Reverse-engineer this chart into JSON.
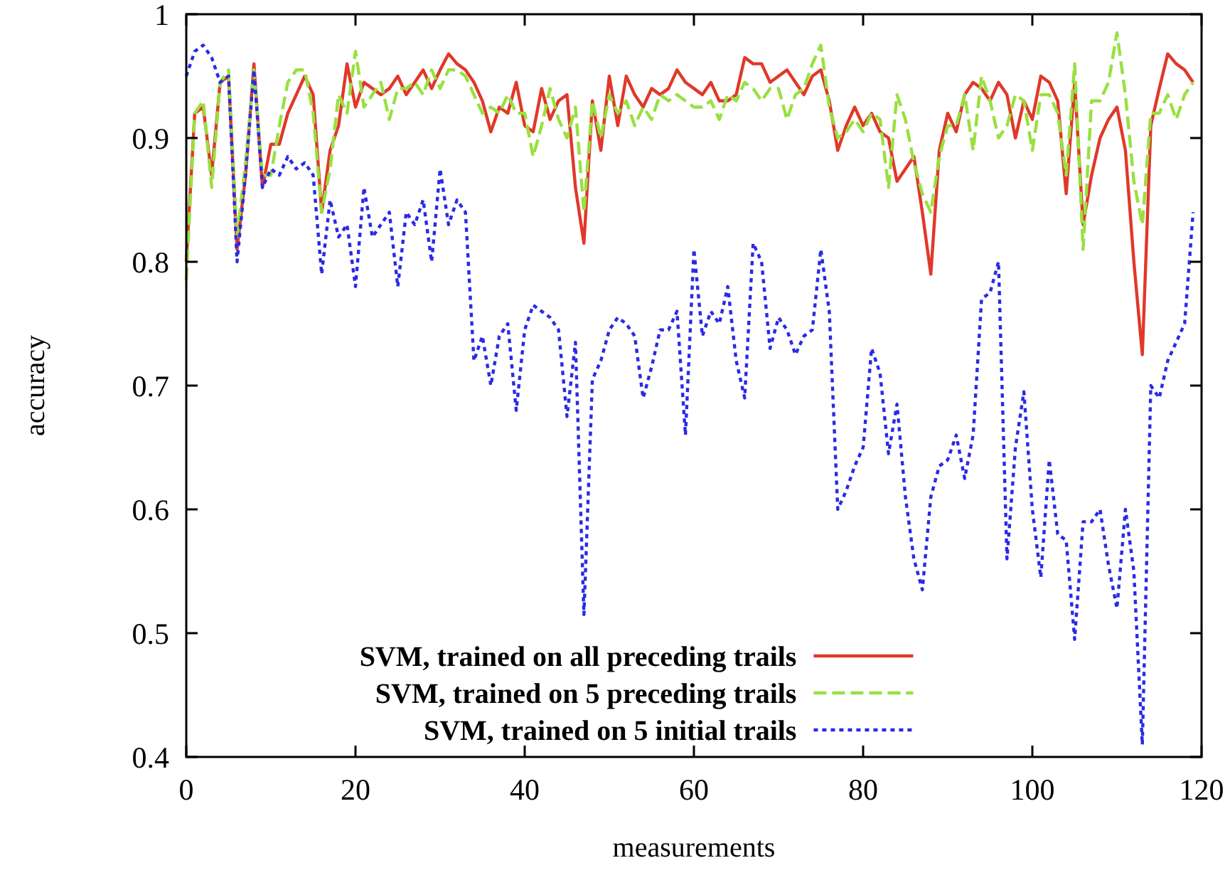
{
  "chart_data": {
    "type": "line",
    "xlabel": "measurements",
    "ylabel": "accuracy",
    "x": [
      0,
      1,
      2,
      3,
      4,
      5,
      6,
      7,
      8,
      9,
      10,
      11,
      12,
      13,
      14,
      15,
      16,
      17,
      18,
      19,
      20,
      21,
      22,
      23,
      24,
      25,
      26,
      27,
      28,
      29,
      30,
      31,
      32,
      33,
      34,
      35,
      36,
      37,
      38,
      39,
      40,
      41,
      42,
      43,
      44,
      45,
      46,
      47,
      48,
      49,
      50,
      51,
      52,
      53,
      54,
      55,
      56,
      57,
      58,
      59,
      60,
      61,
      62,
      63,
      64,
      65,
      66,
      67,
      68,
      69,
      70,
      71,
      72,
      73,
      74,
      75,
      76,
      77,
      78,
      79,
      80,
      81,
      82,
      83,
      84,
      85,
      86,
      87,
      88,
      89,
      90,
      91,
      92,
      93,
      94,
      95,
      96,
      97,
      98,
      99,
      100,
      101,
      102,
      103,
      104,
      105,
      106,
      107,
      108,
      109,
      110,
      111,
      112,
      113,
      114,
      115,
      116,
      117,
      118,
      119
    ],
    "series": [
      {
        "name": "SVM, trained on all preceding trails",
        "color": "#e0382a",
        "line_style": "solid",
        "values": [
          0.8,
          0.92,
          0.925,
          0.87,
          0.945,
          0.95,
          0.81,
          0.87,
          0.96,
          0.86,
          0.895,
          0.895,
          0.92,
          0.935,
          0.95,
          0.935,
          0.84,
          0.89,
          0.91,
          0.96,
          0.925,
          0.945,
          0.94,
          0.935,
          0.94,
          0.95,
          0.935,
          0.945,
          0.955,
          0.94,
          0.955,
          0.968,
          0.96,
          0.955,
          0.945,
          0.93,
          0.905,
          0.925,
          0.92,
          0.945,
          0.91,
          0.905,
          0.94,
          0.915,
          0.93,
          0.935,
          0.86,
          0.815,
          0.93,
          0.89,
          0.95,
          0.91,
          0.95,
          0.935,
          0.925,
          0.94,
          0.935,
          0.94,
          0.955,
          0.945,
          0.94,
          0.935,
          0.945,
          0.93,
          0.93,
          0.935,
          0.965,
          0.96,
          0.96,
          0.945,
          0.95,
          0.955,
          0.945,
          0.935,
          0.95,
          0.955,
          0.93,
          0.89,
          0.91,
          0.925,
          0.91,
          0.92,
          0.905,
          0.9,
          0.865,
          0.875,
          0.885,
          0.84,
          0.79,
          0.89,
          0.92,
          0.905,
          0.935,
          0.945,
          0.94,
          0.93,
          0.945,
          0.935,
          0.9,
          0.93,
          0.915,
          0.95,
          0.945,
          0.93,
          0.855,
          0.945,
          0.83,
          0.87,
          0.9,
          0.915,
          0.925,
          0.89,
          0.8,
          0.725,
          0.91,
          0.94,
          0.968,
          0.96,
          0.955,
          0.945
        ]
      },
      {
        "name": "SVM, trained on 5 preceding trails",
        "color": "#99e040",
        "line_style": "dashed",
        "values": [
          0.785,
          0.92,
          0.93,
          0.86,
          0.945,
          0.955,
          0.82,
          0.88,
          0.955,
          0.87,
          0.87,
          0.91,
          0.945,
          0.955,
          0.955,
          0.92,
          0.84,
          0.875,
          0.935,
          0.92,
          0.97,
          0.925,
          0.935,
          0.945,
          0.915,
          0.94,
          0.94,
          0.945,
          0.935,
          0.955,
          0.94,
          0.955,
          0.955,
          0.95,
          0.935,
          0.92,
          0.925,
          0.92,
          0.935,
          0.92,
          0.92,
          0.885,
          0.91,
          0.94,
          0.915,
          0.9,
          0.925,
          0.84,
          0.93,
          0.9,
          0.935,
          0.92,
          0.93,
          0.91,
          0.925,
          0.915,
          0.935,
          0.93,
          0.935,
          0.93,
          0.925,
          0.925,
          0.93,
          0.915,
          0.935,
          0.93,
          0.945,
          0.94,
          0.93,
          0.94,
          0.94,
          0.915,
          0.935,
          0.94,
          0.96,
          0.975,
          0.925,
          0.9,
          0.905,
          0.915,
          0.905,
          0.92,
          0.915,
          0.86,
          0.935,
          0.915,
          0.88,
          0.855,
          0.84,
          0.885,
          0.91,
          0.91,
          0.935,
          0.89,
          0.95,
          0.93,
          0.9,
          0.91,
          0.935,
          0.93,
          0.89,
          0.935,
          0.935,
          0.92,
          0.87,
          0.96,
          0.81,
          0.93,
          0.93,
          0.945,
          0.985,
          0.935,
          0.865,
          0.83,
          0.92,
          0.92,
          0.935,
          0.915,
          0.935,
          0.945
        ]
      },
      {
        "name": "SVM, trained on 5 initial trails",
        "color": "#2a2ae6",
        "line_style": "dotted",
        "values": [
          0.95,
          0.97,
          0.975,
          0.965,
          0.945,
          0.95,
          0.8,
          0.87,
          0.955,
          0.86,
          0.875,
          0.87,
          0.885,
          0.875,
          0.88,
          0.87,
          0.79,
          0.85,
          0.82,
          0.83,
          0.78,
          0.86,
          0.82,
          0.83,
          0.84,
          0.78,
          0.84,
          0.83,
          0.85,
          0.8,
          0.875,
          0.83,
          0.85,
          0.84,
          0.72,
          0.74,
          0.7,
          0.74,
          0.75,
          0.68,
          0.745,
          0.765,
          0.76,
          0.755,
          0.745,
          0.675,
          0.735,
          0.515,
          0.705,
          0.72,
          0.745,
          0.755,
          0.75,
          0.74,
          0.69,
          0.715,
          0.745,
          0.745,
          0.76,
          0.66,
          0.81,
          0.74,
          0.76,
          0.75,
          0.78,
          0.72,
          0.69,
          0.815,
          0.8,
          0.73,
          0.755,
          0.745,
          0.725,
          0.74,
          0.745,
          0.81,
          0.76,
          0.6,
          0.615,
          0.635,
          0.65,
          0.73,
          0.71,
          0.645,
          0.685,
          0.61,
          0.56,
          0.535,
          0.61,
          0.635,
          0.64,
          0.66,
          0.625,
          0.66,
          0.77,
          0.775,
          0.8,
          0.56,
          0.65,
          0.695,
          0.6,
          0.545,
          0.64,
          0.58,
          0.575,
          0.495,
          0.59,
          0.59,
          0.6,
          0.555,
          0.52,
          0.6,
          0.55,
          0.41,
          0.7,
          0.69,
          0.72,
          0.735,
          0.75,
          0.84
        ]
      }
    ],
    "xlim": [
      0,
      120
    ],
    "xticks": [
      0,
      20,
      40,
      60,
      80,
      100,
      120
    ],
    "ylim": [
      0.4,
      1
    ],
    "yticks": [
      0.4,
      0.5,
      0.6,
      0.7,
      0.8,
      0.9,
      1
    ],
    "grid": false,
    "legend": "bottom"
  }
}
